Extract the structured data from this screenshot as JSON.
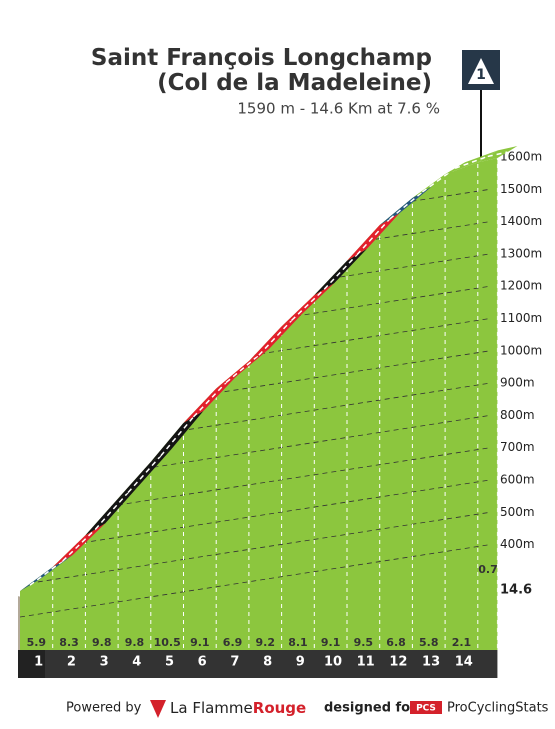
{
  "chart_data": {
    "type": "climb-profile",
    "title": "Saint François Longchamp (Col de la Madeleine)",
    "subtitle": "1590 m - 14.6 Km at 7.6 %",
    "badge": "1",
    "xlim": [
      0,
      14.6
    ],
    "xticks": [
      1,
      2,
      3,
      4,
      5,
      6,
      7,
      8,
      9,
      10,
      11,
      12,
      13,
      14,
      14.6
    ],
    "values": [
      5.9,
      8.3,
      9.8,
      9.8,
      10.5,
      9.1,
      6.9,
      9.2,
      8.1,
      9.1,
      9.5,
      6.8,
      5.8,
      2.1,
      0.7
    ],
    "colors": [
      "#24567e",
      "#e2202c",
      "#141414",
      "#141414",
      "#141414",
      "#e2202c",
      "#e2202c",
      "#e2202c",
      "#e2202c",
      "#141414",
      "#e2202c",
      "#24567e",
      "#8cc63e",
      "#8cc63e",
      "#8cc63e"
    ],
    "fill": "#8cc63e",
    "ylim": [
      480,
      1600
    ],
    "yticks": [
      {
        "value": 400,
        "label": "400m"
      },
      {
        "value": 500,
        "label": "500m"
      },
      {
        "value": 600,
        "label": "600m"
      },
      {
        "value": 700,
        "label": "700m"
      },
      {
        "value": 800,
        "label": "800m"
      },
      {
        "value": 900,
        "label": "900m"
      },
      {
        "value": 1000,
        "label": "1000m"
      },
      {
        "value": 1100,
        "label": "1100m"
      },
      {
        "value": 1200,
        "label": "1200m"
      },
      {
        "value": 1300,
        "label": "1300m"
      },
      {
        "value": 1400,
        "label": "1400m"
      },
      {
        "value": 1500,
        "label": "1500m"
      },
      {
        "value": 1600,
        "label": "1600m"
      }
    ],
    "grid": true
  },
  "footer": {
    "powered": "Powered by",
    "brand1": "La Flamme",
    "brand2": "Rouge",
    "designed": "designed for",
    "pcs": "PCS",
    "site": "ProCyclingStats"
  }
}
